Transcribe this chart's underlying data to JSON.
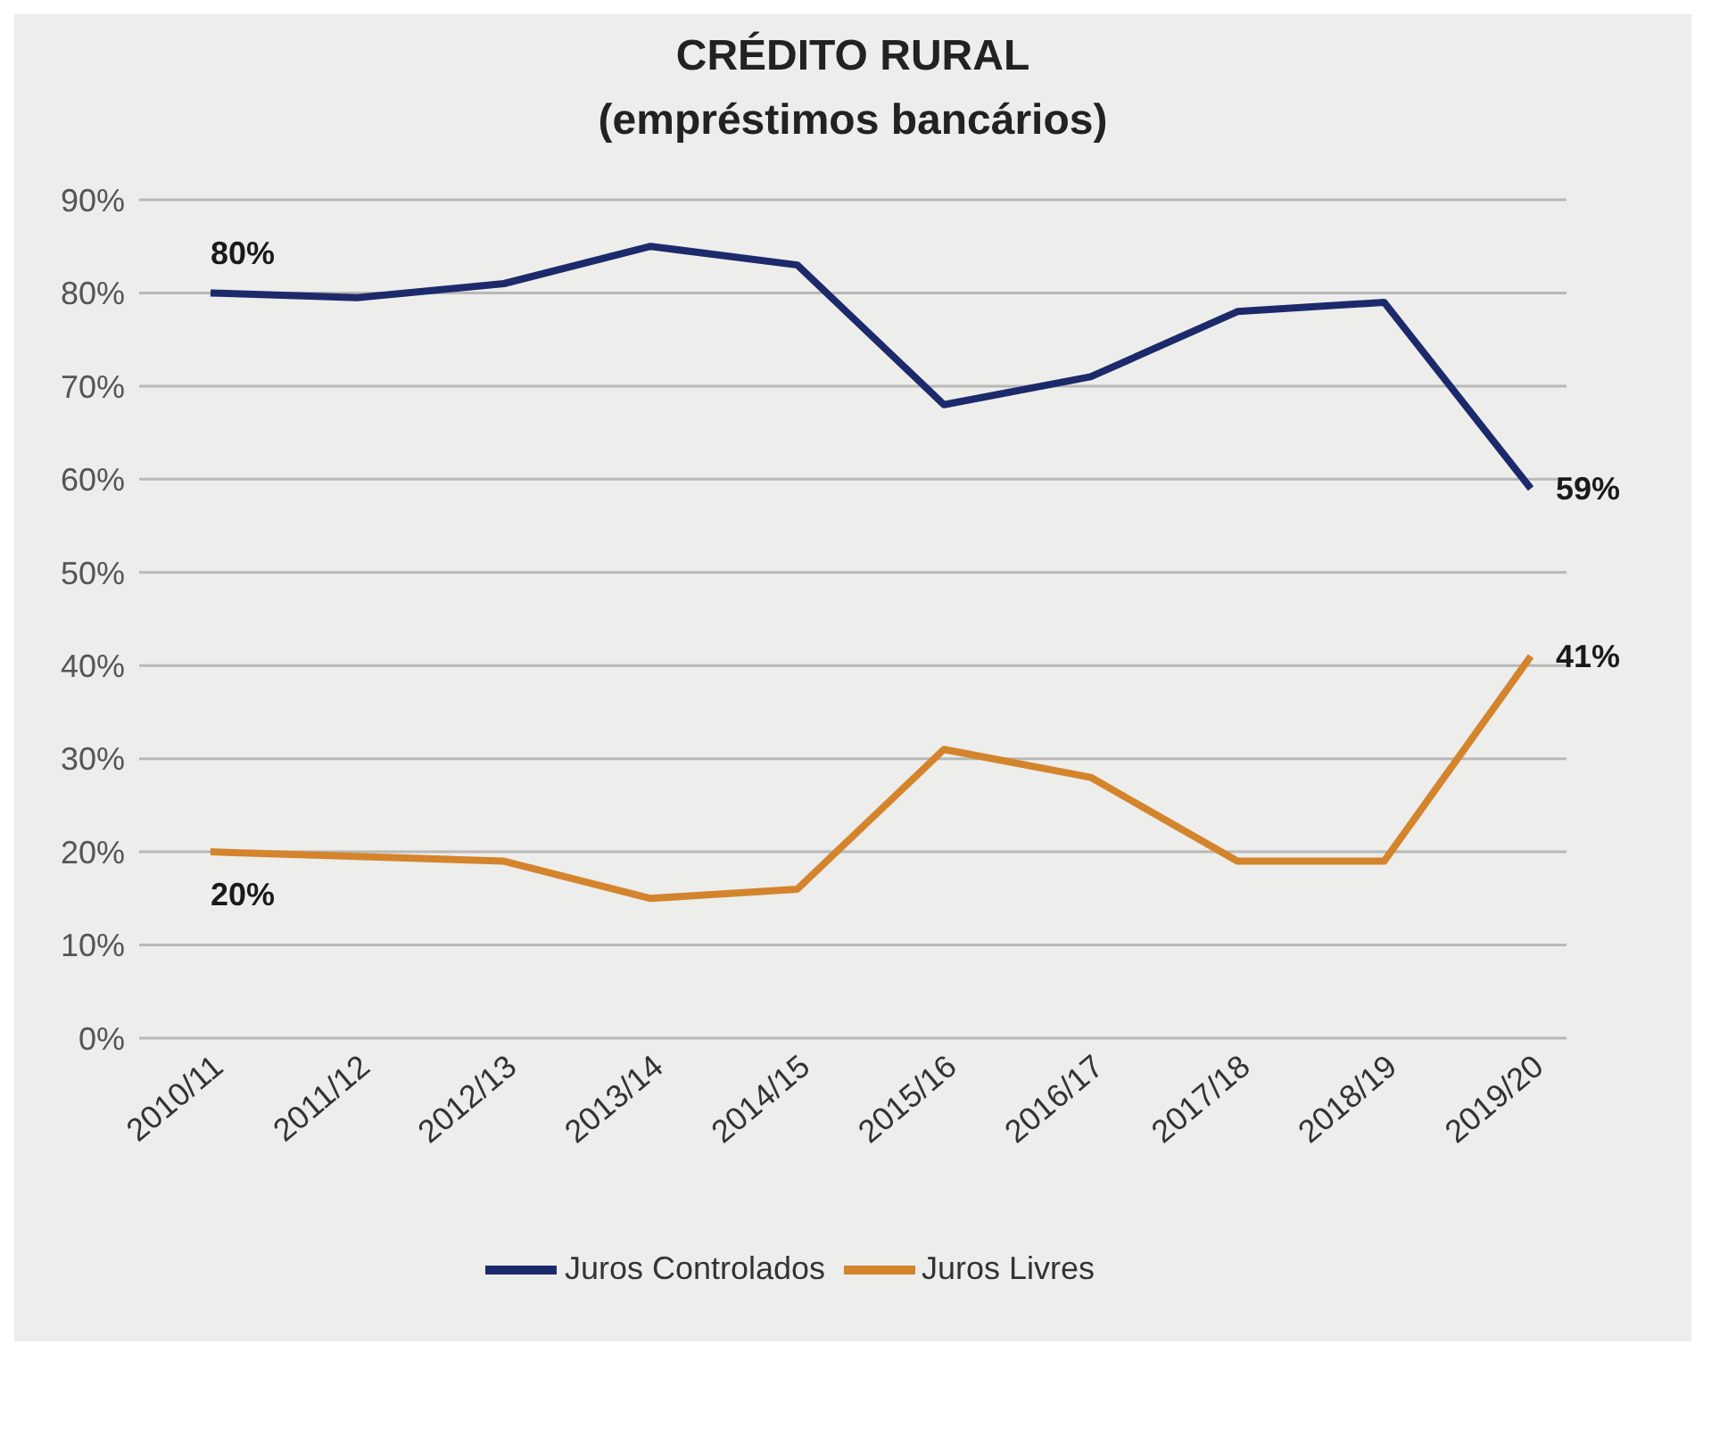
{
  "chart_data": {
    "type": "line",
    "title": "CRÉDITO RURAL",
    "subtitle": "(empréstimos bancários)",
    "categories": [
      "2010/11",
      "2011/12",
      "2012/13",
      "2013/14",
      "2014/15",
      "2015/16",
      "2016/17",
      "2017/18",
      "2018/19",
      "2019/20"
    ],
    "series": [
      {
        "name": "Juros Controlados",
        "color": "#1c2a6b",
        "values": [
          80,
          79.5,
          81,
          85,
          83,
          68,
          71,
          78,
          79,
          59
        ],
        "value_labels": [
          "80%",
          null,
          null,
          null,
          null,
          null,
          null,
          null,
          null,
          "59%"
        ]
      },
      {
        "name": "Juros Livres",
        "color": "#d4842c",
        "values": [
          20,
          19.5,
          19,
          15,
          16,
          31,
          28,
          19,
          19,
          41
        ],
        "value_labels": [
          "20%",
          null,
          null,
          null,
          null,
          null,
          null,
          null,
          null,
          "41%"
        ]
      }
    ],
    "ylim": [
      0,
      90
    ],
    "yticks": [
      {
        "value": 0,
        "label": "0%"
      },
      {
        "value": 10,
        "label": "10%"
      },
      {
        "value": 20,
        "label": "20%"
      },
      {
        "value": 30,
        "label": "30%"
      },
      {
        "value": 40,
        "label": "40%"
      },
      {
        "value": 50,
        "label": "50%"
      },
      {
        "value": 60,
        "label": "60%"
      },
      {
        "value": 70,
        "label": "70%"
      },
      {
        "value": 80,
        "label": "80%"
      },
      {
        "value": 90,
        "label": "90%"
      }
    ],
    "grid": "y",
    "legend": "bottom",
    "marker": "none",
    "line_style": "solid"
  }
}
